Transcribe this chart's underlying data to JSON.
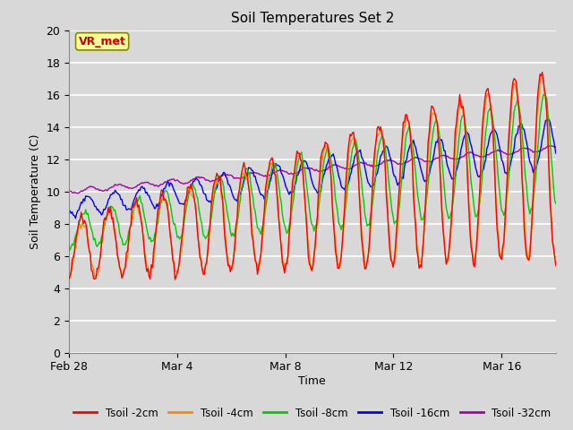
{
  "title": "Soil Temperatures Set 2",
  "xlabel": "Time",
  "ylabel": "Soil Temperature (C)",
  "ylim": [
    0,
    20
  ],
  "yticks": [
    0,
    2,
    4,
    6,
    8,
    10,
    12,
    14,
    16,
    18,
    20
  ],
  "bg_color": "#d8d8d8",
  "plot_bg_color": "#d8d8d8",
  "grid_color": "#ffffff",
  "annotation_text": "VR_met",
  "annotation_color": "#cc0000",
  "annotation_bg": "#ffff99",
  "series_colors": {
    "Tsoil -2cm": "#ff0000",
    "Tsoil -4cm": "#ff8800",
    "Tsoil -8cm": "#00cc00",
    "Tsoil -16cm": "#0000ff",
    "Tsoil -32cm": "#aa00aa"
  },
  "xtick_labels": [
    "Feb 28",
    "Mar 4",
    "Mar 8",
    "Mar 12",
    "Mar 16"
  ],
  "xtick_positions_days": [
    0,
    4,
    8,
    12,
    16
  ]
}
